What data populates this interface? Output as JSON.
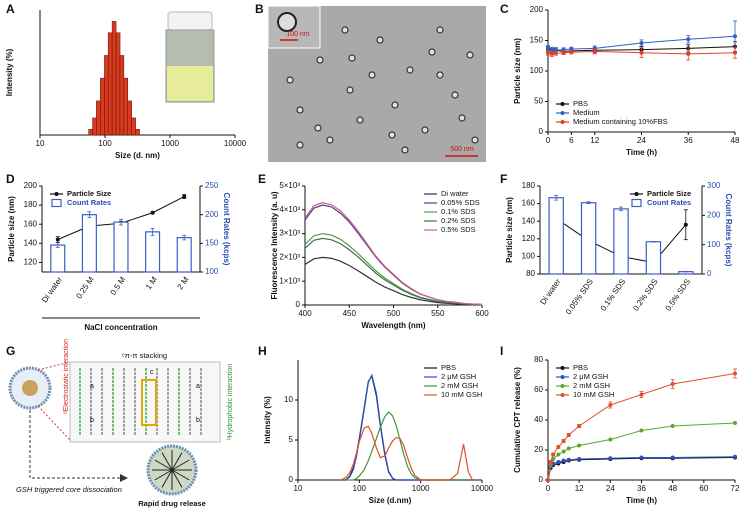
{
  "tem": {
    "panel": "B",
    "inset_scale": "100 nm",
    "scale": "500 nm"
  },
  "scheme": {
    "panel": "G",
    "electrostatic": "ᵃElectrostatic interaction",
    "stacking": "ᶜπ-π stacking",
    "hydrophobic": "ᵇHydrophobic interaction",
    "trigger": "GSH triggered core dissociation",
    "release": "Rapid drug release",
    "letters": [
      "a",
      "b",
      "c"
    ]
  },
  "chart_data": [
    {
      "panel": "A",
      "type": "bar",
      "x": [
        60,
        69,
        79,
        91,
        105,
        120,
        138,
        159,
        182,
        209,
        240,
        276,
        317
      ],
      "values": [
        1,
        3,
        6,
        10,
        14,
        18,
        20,
        18,
        14,
        10,
        6,
        3,
        1
      ],
      "color": "#d93a1e",
      "log_x": true,
      "xlim": [
        10,
        10000
      ],
      "xticks": [
        10,
        100,
        1000,
        10000
      ],
      "ylim": [
        0,
        22
      ],
      "yticks": [],
      "xlabel": "Size (d. nm)",
      "ylabel": "Intensity (%)"
    },
    {
      "panel": "C",
      "type": "line",
      "markers": true,
      "x": [
        0,
        1,
        2,
        4,
        6,
        12,
        24,
        36,
        48
      ],
      "xlim": [
        0,
        48
      ],
      "xticks": [
        0,
        6,
        12,
        24,
        36,
        48
      ],
      "ylim": [
        0,
        200
      ],
      "yticks": [
        0,
        50,
        100,
        150,
        200
      ],
      "xlabel": "Time (h)",
      "ylabel": "Particle size (nm)",
      "legend": "lower left",
      "series": [
        {
          "name": "PBS",
          "color": "#111111",
          "values": [
            135,
            133,
            134,
            132,
            133,
            134,
            135,
            137,
            140
          ],
          "errors": [
            5,
            4,
            4,
            3,
            3,
            4,
            5,
            6,
            8
          ]
        },
        {
          "name": "Medium",
          "color": "#2f5fc4",
          "values": [
            138,
            135,
            134,
            135,
            136,
            137,
            146,
            152,
            157
          ],
          "errors": [
            4,
            4,
            3,
            3,
            3,
            4,
            5,
            6,
            25
          ]
        },
        {
          "name": "Medium containing 10%FBS",
          "color": "#e0402a",
          "values": [
            130,
            128,
            129,
            130,
            131,
            132,
            130,
            128,
            130
          ],
          "errors": [
            4,
            4,
            3,
            3,
            3,
            4,
            8,
            10,
            9
          ]
        }
      ]
    },
    {
      "panel": "D",
      "type": "combo",
      "categories": [
        "Di water",
        "0.25 M",
        "0.5 M",
        "1 M",
        "2 M"
      ],
      "xlabel": "NaCl concentration",
      "ylabel": "Particle size (nm)",
      "ylim": [
        110,
        200
      ],
      "yticks": [
        120,
        140,
        160,
        180,
        200
      ],
      "y2label": "Count Rates (kcps)",
      "y2label_color": "#2a4fb0",
      "y2lim": [
        100,
        250
      ],
      "y2ticks": [
        100,
        150,
        200,
        250
      ],
      "legend": "upper left",
      "series": [
        {
          "name": "Particle Size",
          "type": "line",
          "color": "#111111",
          "values": [
            144,
            158,
            161,
            172,
            189
          ],
          "errors": [
            3,
            3,
            2,
            1,
            2
          ]
        },
        {
          "name": "Count Rates",
          "type": "bar",
          "axis": "y2",
          "color": "#3a5fc0",
          "text_color": "#2a4fb0",
          "values": [
            147,
            200,
            187,
            170,
            160
          ],
          "errors": [
            4,
            5,
            5,
            6,
            4
          ]
        }
      ]
    },
    {
      "panel": "E",
      "type": "line",
      "x": [
        400,
        410,
        420,
        430,
        440,
        450,
        460,
        470,
        480,
        490,
        500,
        510,
        520,
        530,
        540,
        550,
        560,
        570,
        580,
        590,
        600
      ],
      "xlim": [
        400,
        600
      ],
      "xticks": [
        400,
        450,
        500,
        550,
        600
      ],
      "ylim": [
        0,
        5000
      ],
      "yticks": [
        0,
        {
          "value": 1000,
          "label": "1×10³"
        },
        {
          "value": 2000,
          "label": "2×10³"
        },
        {
          "value": 3000,
          "label": "3×10³"
        },
        {
          "value": 4000,
          "label": "4×10³"
        },
        {
          "value": 5000,
          "label": "5×10³"
        }
      ],
      "xlabel": "Wavelength (nm)",
      "ylabel": "Fluorescence Intensity (a. u)",
      "legend": "upper right",
      "series": [
        {
          "name": "Di water",
          "color": "#333333",
          "values": [
            1700,
            1940,
            2000,
            1960,
            1840,
            1660,
            1440,
            1200,
            960,
            760,
            600,
            440,
            320,
            220,
            160,
            100,
            70,
            50,
            30,
            20,
            10
          ]
        },
        {
          "name": "0.05% SDS",
          "color": "#4b3f9a",
          "values": [
            3570,
            4070,
            4200,
            4120,
            3860,
            3490,
            3020,
            2520,
            2020,
            1600,
            1260,
            920,
            670,
            460,
            340,
            210,
            150,
            110,
            60,
            40,
            20
          ]
        },
        {
          "name": "0.1% SDS",
          "color": "#5a9a3a",
          "values": [
            2550,
            2910,
            3000,
            2940,
            2760,
            2490,
            2160,
            1800,
            1440,
            1140,
            900,
            660,
            480,
            330,
            240,
            150,
            110,
            80,
            50,
            30,
            20
          ]
        },
        {
          "name": "0.2% SDS",
          "color": "#3a6e5a",
          "values": [
            2380,
            2720,
            2800,
            2740,
            2580,
            2320,
            2020,
            1680,
            1340,
            1060,
            840,
            620,
            450,
            310,
            220,
            140,
            100,
            70,
            40,
            30,
            10
          ]
        },
        {
          "name": "0.5% SDS",
          "color": "#d06080",
          "values": [
            3660,
            4170,
            4300,
            4210,
            3960,
            3570,
            3100,
            2580,
            2060,
            1630,
            1290,
            950,
            690,
            470,
            340,
            220,
            150,
            110,
            60,
            40,
            20
          ]
        }
      ]
    },
    {
      "panel": "F",
      "type": "combo",
      "categories": [
        "Di water",
        "0.05% SDS",
        "0.1% SDS",
        "0.2% SDS",
        "0.5% SDS"
      ],
      "ylabel": "Particle size (nm)",
      "ylim": [
        80,
        180
      ],
      "yticks": [
        80,
        100,
        120,
        140,
        160,
        180
      ],
      "y2label": "Count Rates (kcps)",
      "y2label_color": "#2a4fb0",
      "y2lim": [
        0,
        300
      ],
      "y2ticks": [
        0,
        100,
        200,
        300
      ],
      "legend": "upper right",
      "series": [
        {
          "name": "Particle Size",
          "type": "line",
          "color": "#111111",
          "values": [
            143,
            118,
            100,
            93,
            136
          ],
          "errors": [
            4,
            3,
            2,
            1,
            17
          ]
        },
        {
          "name": "Count Rates",
          "type": "bar",
          "axis": "y2",
          "color": "#3a5fc0",
          "text_color": "#2a4fb0",
          "values": [
            260,
            243,
            222,
            110,
            8
          ],
          "errors": [
            8,
            3,
            6,
            1,
            1
          ]
        }
      ]
    },
    {
      "panel": "H",
      "type": "line",
      "log_x": true,
      "x": [
        50,
        60,
        70,
        80,
        90,
        100,
        120,
        140,
        160,
        190,
        220,
        260,
        300,
        350,
        400,
        460,
        530,
        610,
        700,
        800,
        1000,
        1500,
        2000,
        3000,
        4000,
        5000,
        6000,
        7000
      ],
      "xlim": [
        10,
        10000
      ],
      "xticks": [
        10,
        100,
        1000,
        10000
      ],
      "ylim": [
        0,
        15
      ],
      "yticks": [
        0,
        5,
        10
      ],
      "xlabel": "Size (d.nm)",
      "ylabel": "Intensity (%)",
      "legend": "upper right",
      "series": [
        {
          "name": "PBS",
          "color": "#111111",
          "values": [
            0,
            0,
            0.5,
            1.5,
            3.2,
            5.2,
            9,
            12.3,
            13,
            10.5,
            6.8,
            3.2,
            1,
            0.2,
            0,
            0,
            0,
            0,
            0,
            0,
            0,
            0,
            0,
            0,
            0,
            0,
            0,
            0
          ]
        },
        {
          "name": "2 μM GSH",
          "color": "#2f4fc4",
          "values": [
            0,
            0,
            0.4,
            1.3,
            3,
            5,
            8.8,
            12.2,
            13.1,
            10.8,
            7,
            3.4,
            1.1,
            0.2,
            0,
            0,
            0,
            0,
            0,
            0,
            0,
            0,
            0,
            0,
            0,
            0,
            0,
            0
          ]
        },
        {
          "name": "2 mM GSH",
          "color": "#3a9a3a",
          "values": [
            0,
            0,
            0,
            0,
            0.2,
            0.5,
            1.3,
            2.4,
            3.6,
            5.2,
            6.6,
            7.9,
            8.5,
            8,
            6.8,
            5,
            3.2,
            1.7,
            0.8,
            0.3,
            0,
            0,
            0,
            0,
            0,
            0,
            0,
            0
          ]
        },
        {
          "name": "10 mM GSH",
          "color": "#e0502a",
          "values": [
            0,
            0.3,
            0.9,
            2,
            3.4,
            4.8,
            6.5,
            6.7,
            5.8,
            4,
            2.8,
            3,
            4,
            4.9,
            5.3,
            5.2,
            4.3,
            2.8,
            1.5,
            0.6,
            0,
            0,
            0,
            0,
            0.8,
            4.5,
            1,
            0
          ]
        }
      ]
    },
    {
      "panel": "I",
      "type": "line",
      "markers": true,
      "x": [
        0,
        1,
        2,
        4,
        6,
        8,
        12,
        24,
        36,
        48,
        72
      ],
      "xlim": [
        0,
        72
      ],
      "xticks": [
        0,
        12,
        24,
        36,
        48,
        60,
        72
      ],
      "ylim": [
        0,
        80
      ],
      "yticks": [
        0,
        20,
        40,
        60,
        80
      ],
      "xlabel": "Time (h)",
      "ylabel": "Cumulative CPT release (%)",
      "legend": "upper left",
      "series": [
        {
          "name": "PBS",
          "color": "#111111",
          "values": [
            0,
            8,
            10,
            11,
            12,
            13,
            13.5,
            14,
            14.5,
            14.5,
            15
          ]
        },
        {
          "name": "2 μM GSH",
          "color": "#2f4fc4",
          "values": [
            0,
            9,
            11,
            12,
            13,
            13.5,
            14,
            14.5,
            15,
            15,
            15.5
          ]
        },
        {
          "name": "2 mM GSH",
          "color": "#5aa832",
          "values": [
            0,
            10,
            14,
            17,
            19,
            21,
            23,
            27,
            33,
            36,
            38
          ]
        },
        {
          "name": "10 mM GSH",
          "color": "#e0502a",
          "values": [
            0,
            12,
            17,
            22,
            26,
            30,
            36,
            50,
            57,
            64,
            71
          ],
          "errors": [
            0,
            1,
            1,
            1,
            1,
            1,
            1,
            2,
            2,
            3,
            3
          ]
        }
      ]
    }
  ]
}
